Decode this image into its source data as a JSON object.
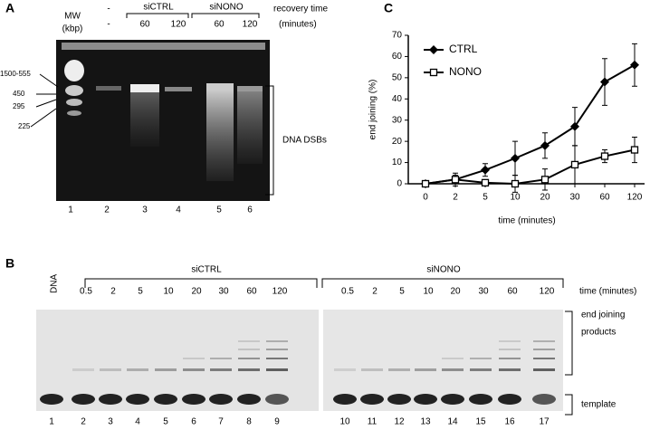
{
  "panel_a": {
    "label": "A",
    "mw_header": [
      "MW",
      "(kbp)"
    ],
    "mw_markers": [
      "1500-555",
      "450",
      "295",
      "225"
    ],
    "condition_minus": [
      "-",
      "-"
    ],
    "conditions": [
      "siCTRL",
      "siNONO"
    ],
    "times": [
      "60",
      "120",
      "60",
      "120"
    ],
    "recovery_header": [
      "recovery time",
      "(minutes)"
    ],
    "lanes": [
      "1",
      "2",
      "3",
      "4",
      "5",
      "6"
    ],
    "bracket_label": "DNA DSBs"
  },
  "panel_b": {
    "label": "B",
    "dna_label": "DNA",
    "conditions": [
      "siCTRL",
      "siNONO"
    ],
    "times": [
      "0.5",
      "2",
      "5",
      "10",
      "20",
      "30",
      "60",
      "120",
      "0.5",
      "2",
      "5",
      "10",
      "20",
      "30",
      "60",
      "120"
    ],
    "time_header": "time (minutes)",
    "lanes": [
      "1",
      "2",
      "3",
      "4",
      "5",
      "6",
      "7",
      "8",
      "9",
      "10",
      "11",
      "12",
      "13",
      "14",
      "15",
      "16",
      "17"
    ],
    "end_joining_label": [
      "end joining",
      "products"
    ],
    "template_label": "template"
  },
  "chart_data": {
    "type": "line",
    "panel_label": "C",
    "categories": [
      "0",
      "2",
      "5",
      "10",
      "20",
      "30",
      "60",
      "120"
    ],
    "series": [
      {
        "name": "CTRL",
        "color": "#000000",
        "marker": "filled-diamond",
        "values": [
          0,
          2,
          6.5,
          12,
          18,
          27,
          48,
          56
        ],
        "errors": [
          0,
          3,
          3,
          8,
          6,
          9,
          11,
          10
        ]
      },
      {
        "name": "NONO",
        "color": "#000000",
        "marker": "open-square",
        "values": [
          0,
          2,
          0.5,
          0,
          2,
          9,
          13,
          16
        ],
        "errors": [
          0,
          2,
          1,
          4,
          5,
          9,
          3,
          6
        ]
      }
    ],
    "ylim": [
      0,
      70
    ],
    "yticks": [
      0,
      10,
      20,
      30,
      40,
      50,
      60,
      70
    ],
    "ylabel": "end joining (%)",
    "xlabel": "time (minutes)",
    "legend": "upper-left"
  }
}
